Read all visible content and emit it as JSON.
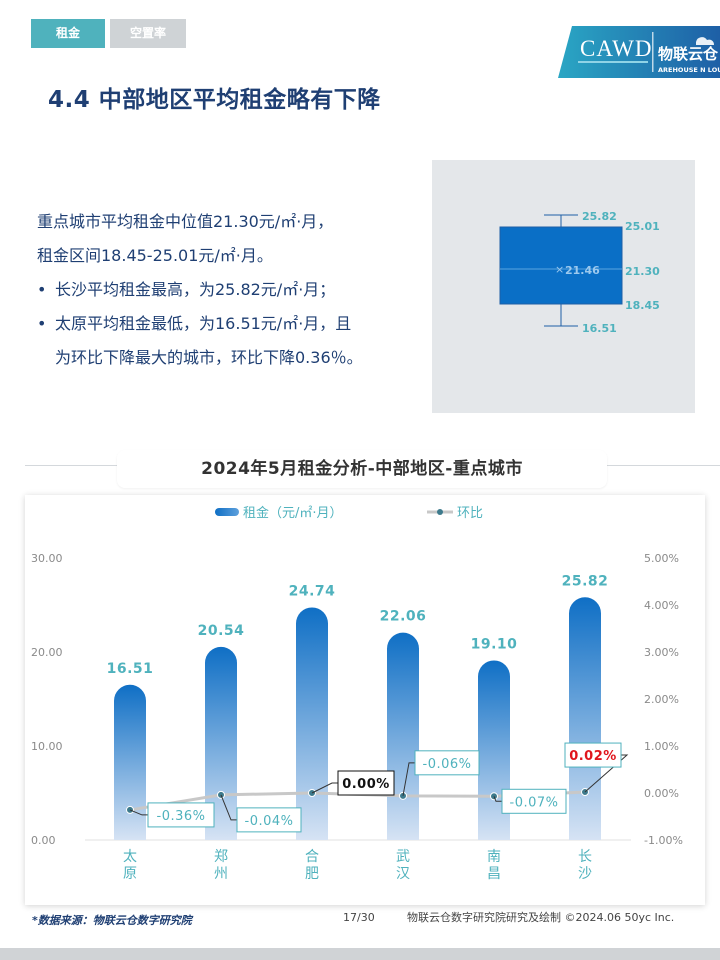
{
  "tabs": [
    {
      "label": "租金",
      "active": true
    },
    {
      "label": "空置率",
      "active": false
    }
  ],
  "logo": {
    "text": "CAWD",
    "brand": "物联云仓",
    "brand_sub": "AREHOUSE  N  LOUD"
  },
  "page_title": "4.4 中部地区平均租金略有下降",
  "summary": {
    "line1": "重点城市平均租金中位值21.30元/㎡·月，",
    "line2": "租金区间18.45-25.01元/㎡·月。",
    "bullet1": "长沙平均租金最高，为25.82元/㎡·月；",
    "bullet2_a": "太原平均租金最低，为16.51元/㎡·月，且",
    "bullet2_b": "为环比下降最大的城市，环比下降0.36％。"
  },
  "box_plot": {
    "max": "25.82",
    "q3": "25.01",
    "mean": "21.46",
    "median": "21.30",
    "q1": "18.45",
    "min": "16.51",
    "values": {
      "max": 25.82,
      "q3": 25.01,
      "mean": 21.46,
      "median": 21.3,
      "q1": 18.45,
      "min": 16.51
    },
    "color": "#0a6fc6"
  },
  "chart_title": "2024年5月租金分析-中部地区-重点城市",
  "chart_data": {
    "type": "bar",
    "categories": [
      "太原",
      "郑州",
      "合肥",
      "武汉",
      "南昌",
      "长沙"
    ],
    "series": [
      {
        "name": "租金（元/㎡·月）",
        "type": "bar",
        "axis": "left",
        "values": [
          16.51,
          20.54,
          24.74,
          22.06,
          19.1,
          25.82
        ]
      },
      {
        "name": "环比",
        "type": "line",
        "axis": "right",
        "values": [
          -0.36,
          -0.04,
          0.0,
          -0.06,
          -0.07,
          0.02
        ]
      }
    ],
    "bar_labels": [
      "16.51",
      "20.54",
      "24.74",
      "22.06",
      "19.10",
      "25.82"
    ],
    "line_labels": [
      "-0.36%",
      "-0.04%",
      "0.00%",
      "-0.06%",
      "-0.07%",
      "0.02%"
    ],
    "ylim": [
      0,
      30
    ],
    "y_ticks": [
      "0.00",
      "10.00",
      "20.00",
      "30.00"
    ],
    "y2lim": [
      -1,
      5
    ],
    "y2_ticks": [
      "-1.00%",
      "0.00%",
      "1.00%",
      "2.00%",
      "3.00%",
      "4.00%",
      "5.00%"
    ],
    "legend_position": "top",
    "colors": {
      "bar_top": "#0f6fc5",
      "bar_bottom": "#d6e3f4",
      "line": "#c8c8c8",
      "marker": "#3d7a8c",
      "label": "#4fb2bd",
      "negative_label": "#4fb2bd",
      "zero_label": "#111111",
      "positive_label": "#e0161d"
    }
  },
  "footer": {
    "source": "*数据来源：物联云仓数字研究院",
    "page": "17/30",
    "credit": "物联云仓数字研究院研究及绘制   ©2024.06 50yc Inc."
  }
}
